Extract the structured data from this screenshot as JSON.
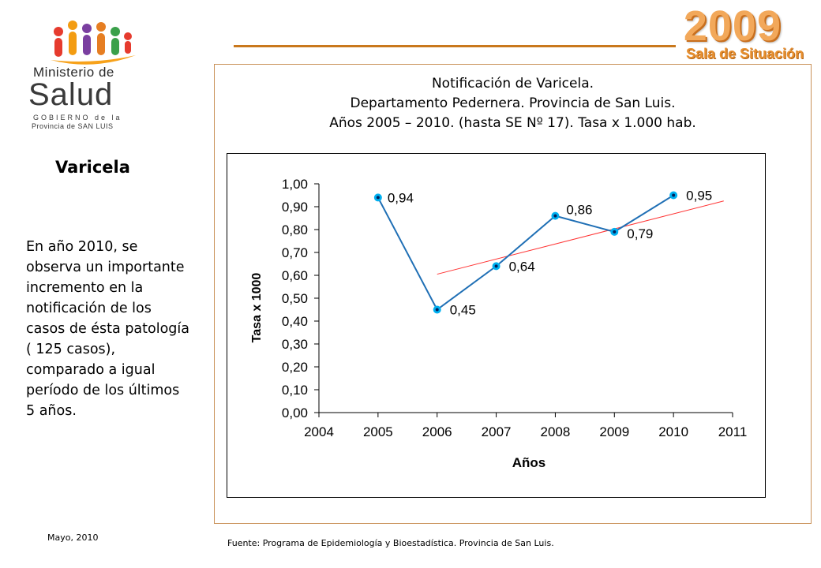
{
  "logo": {
    "line1": "Ministerio de",
    "line2": "Salud",
    "line3": "GOBIERNO de la",
    "line4": "Provincia de SAN LUIS"
  },
  "brand": {
    "year": "2009",
    "subtitle": "Sala de Situación"
  },
  "topic": "Varicela",
  "side_text": "En año 2010, se observa un importante incremento en la notificación de los casos de ésta patología ( 125 casos), comparado a igual período de los últimos 5 años.",
  "footer": {
    "date": "Mayo, 2010",
    "source": "Fuente: Programa de Epidemiología y Bioestadística. Provincia de San Luis."
  },
  "chart_title": {
    "line1": "Notificación de Varicela.",
    "line2": "Departamento Pedernera. Provincia de San Luis.",
    "line3": "Años 2005 – 2010. (hasta SE Nº 17). Tasa x 1.000 hab."
  },
  "colors": {
    "accent": "#c9781c",
    "series_line": "#1f6fb5",
    "marker_fill": "#00b0f0",
    "trend_line": "#ff3333"
  },
  "chart_data": {
    "type": "line",
    "xlabel": "Años",
    "ylabel": "Tasa x 1000",
    "xlim": [
      2004,
      2011
    ],
    "ylim": [
      0,
      1.0
    ],
    "x_ticks": [
      "2004",
      "2005",
      "2006",
      "2007",
      "2008",
      "2009",
      "2010",
      "2011"
    ],
    "y_ticks": [
      "0,00",
      "0,10",
      "0,20",
      "0,30",
      "0,40",
      "0,50",
      "0,60",
      "0,70",
      "0,80",
      "0,90",
      "1,00"
    ],
    "series": [
      {
        "x": [
          2005,
          2006,
          2007,
          2008,
          2009,
          2010
        ],
        "y": [
          0.94,
          0.45,
          0.64,
          0.86,
          0.79,
          0.95
        ],
        "labels": [
          "0,94",
          "0,45",
          "0,64",
          "0,86",
          "0,79",
          "0,95"
        ]
      }
    ],
    "trendline": {
      "type": "linear",
      "x": [
        2006,
        2010.85
      ],
      "y": [
        0.605,
        0.925
      ]
    },
    "grid": false,
    "legend": "none"
  }
}
